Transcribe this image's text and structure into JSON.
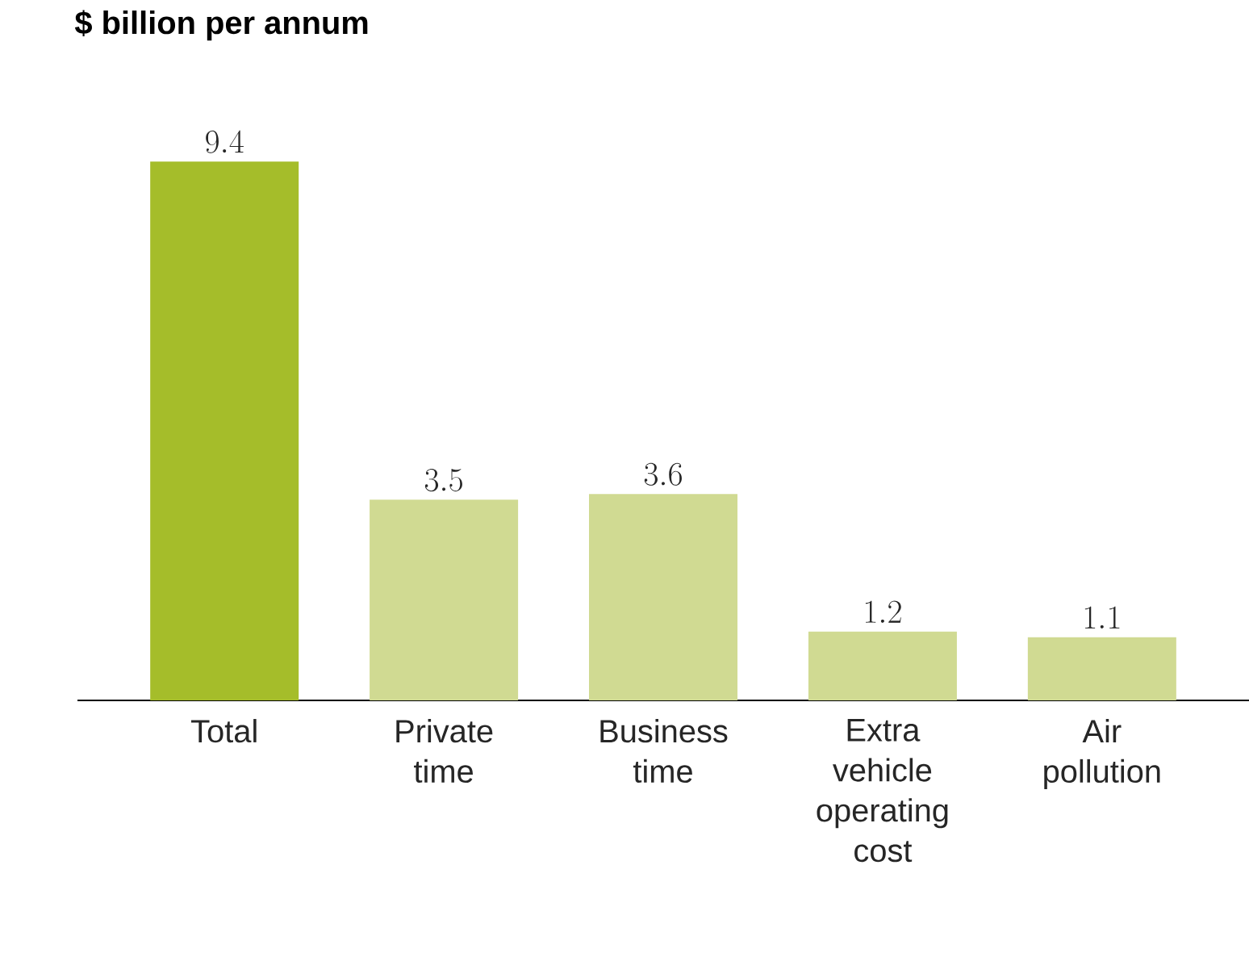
{
  "chart_data": {
    "type": "bar",
    "title": "$ billion per annum",
    "categories": [
      "Total",
      "Private time",
      "Business time",
      "Extra vehicle operating cost",
      "Air pollution"
    ],
    "values": [
      9.4,
      3.5,
      3.6,
      1.2,
      1.1
    ],
    "colors": [
      "#a5bd2a",
      "#d0da92",
      "#d0da92",
      "#d0da92",
      "#d0da92"
    ],
    "data_labels": true
  }
}
